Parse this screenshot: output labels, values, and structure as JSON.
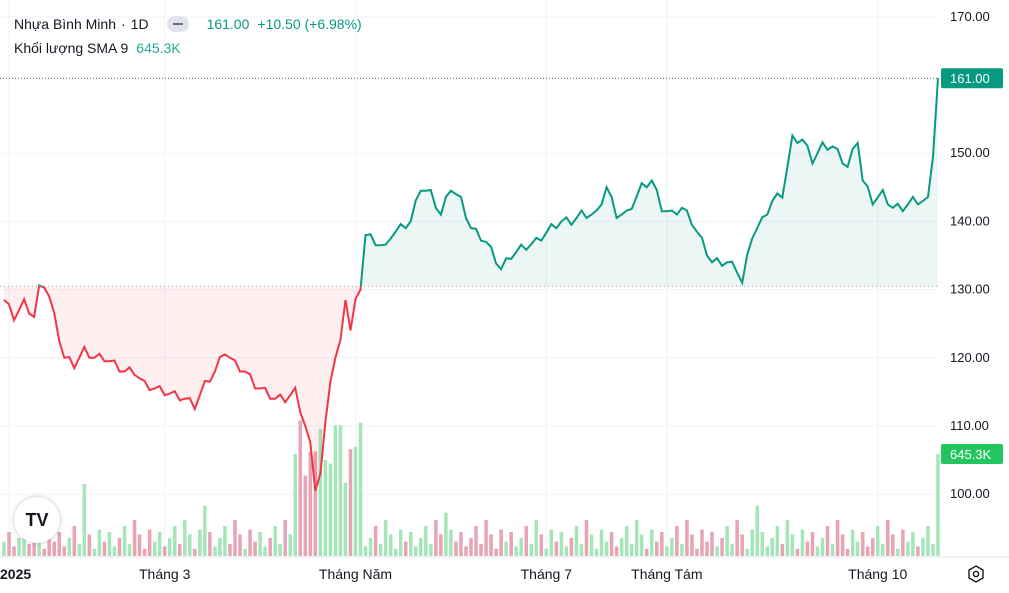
{
  "header": {
    "symbol": "Nhựa Bình Minh",
    "separator": "·",
    "interval": "1D",
    "price": "161.00",
    "change": "+10.50 (+6.98%)",
    "volume_label": "Khối lượng SMA 9",
    "volume_value": "645.3K"
  },
  "colors": {
    "up": "#089981",
    "down": "#f23645",
    "volume_up": "#a5e6b8",
    "volume_down": "#e8a3b4",
    "volume_badge": "#22c55e",
    "grid": "#f0f3fa"
  },
  "icons": {
    "logo": "tradingview-logo-icon",
    "settings": "settings-hexagon-icon"
  },
  "logo_text": "TV",
  "chart_data": {
    "type": "line",
    "ylim": [
      90,
      171
    ],
    "yticks": [
      "170.00",
      "150.00",
      "140.00",
      "130.00",
      "120.00",
      "110.00",
      "100.00"
    ],
    "ytick_values": [
      170,
      150,
      140,
      130,
      120,
      110,
      100
    ],
    "xtick_labels": [
      "2025",
      "Tháng 3",
      "Tháng Năm",
      "Tháng 7",
      "Tháng Tám",
      "Tháng 10"
    ],
    "xtick_index": [
      1,
      32,
      70,
      108,
      132,
      174
    ],
    "baseline": 130.5,
    "last_price_label": "161.00",
    "last_volume_label": "645.3K",
    "num_points": 187,
    "keypoints": [
      [
        0,
        128.5
      ],
      [
        2,
        126
      ],
      [
        4,
        128
      ],
      [
        6,
        126
      ],
      [
        7,
        130
      ],
      [
        8,
        130.8
      ],
      [
        9,
        129
      ],
      [
        10,
        126
      ],
      [
        11,
        123
      ],
      [
        12,
        120
      ],
      [
        14,
        119
      ],
      [
        16,
        121
      ],
      [
        18,
        120
      ],
      [
        20,
        120
      ],
      [
        22,
        119
      ],
      [
        24,
        118
      ],
      [
        26,
        118
      ],
      [
        28,
        116
      ],
      [
        30,
        115.5
      ],
      [
        32,
        115
      ],
      [
        34,
        114.5
      ],
      [
        36,
        114
      ],
      [
        38,
        113
      ],
      [
        40,
        116
      ],
      [
        42,
        118
      ],
      [
        44,
        121
      ],
      [
        46,
        119
      ],
      [
        48,
        118
      ],
      [
        50,
        116
      ],
      [
        52,
        115
      ],
      [
        54,
        114
      ],
      [
        56,
        114
      ],
      [
        58,
        115
      ],
      [
        60,
        110
      ],
      [
        61,
        107
      ],
      [
        62,
        101
      ],
      [
        63,
        103
      ],
      [
        64,
        110
      ],
      [
        65,
        117
      ],
      [
        66,
        120
      ],
      [
        67,
        122
      ],
      [
        68,
        129
      ],
      [
        69,
        124
      ],
      [
        70,
        128
      ],
      [
        71,
        130.5
      ],
      [
        72,
        138
      ],
      [
        74,
        137
      ],
      [
        76,
        136
      ],
      [
        77,
        138
      ],
      [
        79,
        139
      ],
      [
        81,
        140
      ],
      [
        83,
        145
      ],
      [
        85,
        144
      ],
      [
        87,
        141
      ],
      [
        89,
        145
      ],
      [
        91,
        143
      ],
      [
        93,
        139
      ],
      [
        96,
        137
      ],
      [
        99,
        133
      ],
      [
        101,
        135
      ],
      [
        103,
        136
      ],
      [
        106,
        137
      ],
      [
        109,
        139
      ],
      [
        111,
        140
      ],
      [
        113,
        140
      ],
      [
        115,
        141
      ],
      [
        118,
        141
      ],
      [
        120,
        145
      ],
      [
        122,
        141
      ],
      [
        124,
        141
      ],
      [
        127,
        145
      ],
      [
        129,
        146
      ],
      [
        131,
        142
      ],
      [
        133,
        141
      ],
      [
        135,
        142
      ],
      [
        137,
        140
      ],
      [
        139,
        137
      ],
      [
        141,
        134
      ],
      [
        144,
        134
      ],
      [
        146,
        133
      ],
      [
        147,
        131
      ],
      [
        149,
        138
      ],
      [
        151,
        140
      ],
      [
        153,
        143
      ],
      [
        155,
        144
      ],
      [
        157,
        152
      ],
      [
        159,
        152
      ],
      [
        161,
        149
      ],
      [
        163,
        151
      ],
      [
        165,
        151
      ],
      [
        167,
        149
      ],
      [
        168,
        148
      ],
      [
        170,
        152
      ],
      [
        171,
        146
      ],
      [
        173,
        143
      ],
      [
        175,
        144
      ],
      [
        177,
        142
      ],
      [
        179,
        142
      ],
      [
        181,
        143
      ],
      [
        183,
        143
      ],
      [
        184,
        143
      ],
      [
        185,
        150
      ],
      [
        186,
        161
      ]
    ],
    "volume_pattern": [
      0.12,
      0.2,
      0.08,
      0.15,
      0.25,
      0.1,
      0.3,
      0.18,
      0.06,
      0.22
    ]
  }
}
